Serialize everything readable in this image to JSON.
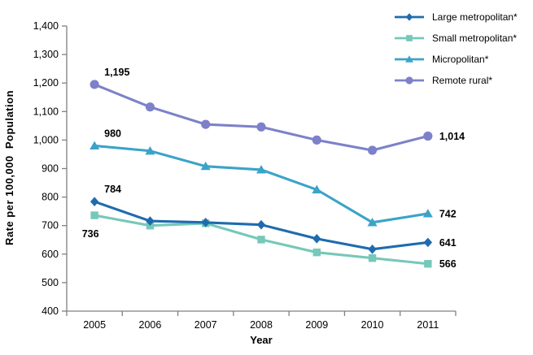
{
  "chart_data": {
    "type": "line",
    "title": "",
    "xlabel": "Year",
    "ylabel": "Rate per 100,000  Population",
    "categories": [
      "2005",
      "2006",
      "2007",
      "2008",
      "2009",
      "2010",
      "2011"
    ],
    "ylim": [
      400,
      1400
    ],
    "y_tick_step": 100,
    "y_tick_labels": [
      "400",
      "500",
      "600",
      "700",
      "800",
      "900",
      "1,000",
      "1,100",
      "1,200",
      "1,300",
      "1,400"
    ],
    "grid": false,
    "legend_position": "top-right",
    "axis_color": "#808080",
    "text_color": "#000000",
    "series": [
      {
        "name": "Large metropolitan*",
        "marker": "diamond",
        "color": "#1e6cae",
        "values": [
          784,
          716,
          711,
          703,
          654,
          617,
          641
        ]
      },
      {
        "name": "Small metropolitan*",
        "marker": "square",
        "color": "#76c8b9",
        "values": [
          736,
          700,
          708,
          651,
          606,
          586,
          566
        ]
      },
      {
        "name": "Micropolitan*",
        "marker": "triangle",
        "color": "#3ba3c8",
        "values": [
          980,
          962,
          908,
          896,
          826,
          711,
          742
        ]
      },
      {
        "name": "Remote rural*",
        "marker": "circle",
        "color": "#7d81c9",
        "values": [
          1195,
          1116,
          1055,
          1046,
          1000,
          964,
          1014
        ]
      }
    ],
    "draw_order": [
      1,
      0,
      2,
      3
    ],
    "point_labels": [
      {
        "series": 3,
        "index": 0,
        "text": "1,195",
        "placement": "above"
      },
      {
        "series": 2,
        "index": 0,
        "text": "980",
        "placement": "above"
      },
      {
        "series": 0,
        "index": 0,
        "text": "784",
        "placement": "above"
      },
      {
        "series": 1,
        "index": 0,
        "text": "736",
        "placement": "below"
      },
      {
        "series": 3,
        "index": 6,
        "text": "1,014",
        "placement": "right"
      },
      {
        "series": 2,
        "index": 6,
        "text": "742",
        "placement": "right"
      },
      {
        "series": 0,
        "index": 6,
        "text": "641",
        "placement": "right"
      },
      {
        "series": 1,
        "index": 6,
        "text": "566",
        "placement": "right"
      }
    ]
  }
}
